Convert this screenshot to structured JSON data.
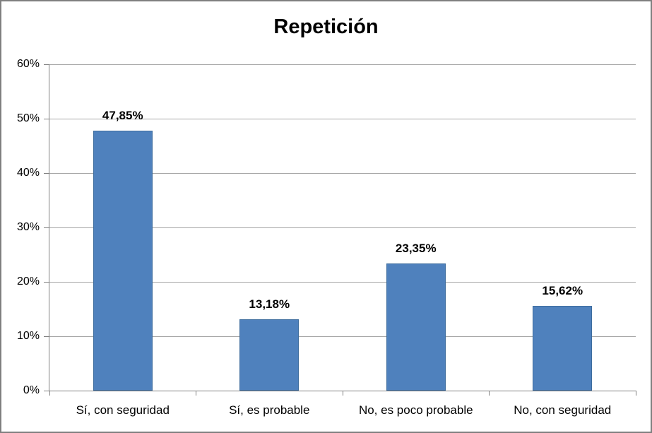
{
  "chart_data": {
    "type": "bar",
    "title": "Repetición",
    "categories": [
      "Sí, con seguridad",
      "Sí, es probable",
      "No, es poco probable",
      "No, con seguridad"
    ],
    "values": [
      47.85,
      13.18,
      23.35,
      15.62
    ],
    "value_labels": [
      "47,85%",
      "13,18%",
      "23,35%",
      "15,62%"
    ],
    "xlabel": "",
    "ylabel": "",
    "ylim": [
      0,
      60
    ],
    "ytick_interval": 10,
    "ytick_labels": [
      "0%",
      "10%",
      "20%",
      "30%",
      "40%",
      "50%",
      "60%"
    ],
    "grid": true,
    "legend": "none",
    "bar_color": "#4F81BD",
    "bar_border_color": "#3E6D9E",
    "gridline_color": "#A6A6A6",
    "axis_color": "#808080",
    "frame_border_color": "#7F7F7F",
    "background": "#FFFFFF",
    "text_color": "#000000"
  }
}
